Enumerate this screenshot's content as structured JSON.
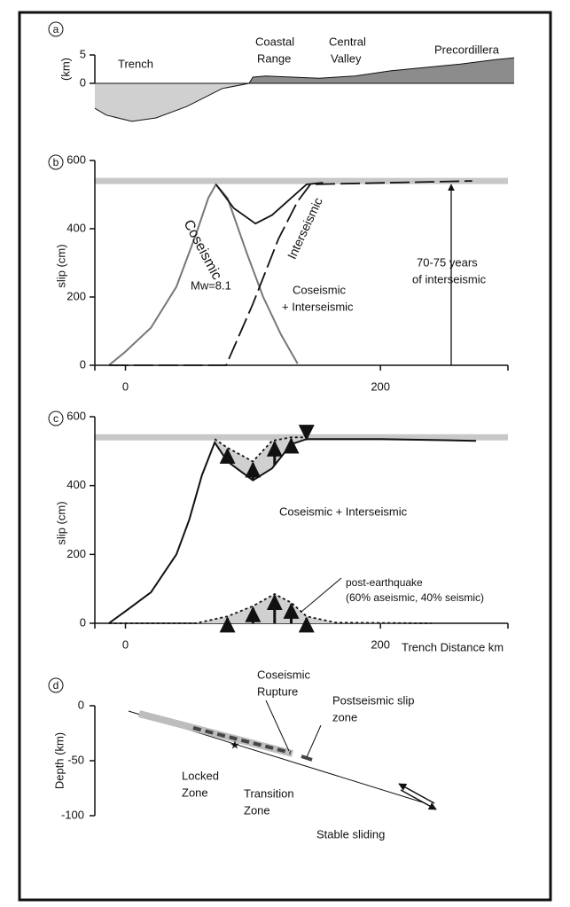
{
  "chart_data": [
    {
      "type": "profile",
      "label": "a",
      "ylabel": "(km)",
      "xlim": [
        -24,
        305
      ],
      "ylim": [
        -7,
        6
      ],
      "yticks": [
        0,
        5
      ],
      "x": [
        -24,
        -15,
        5,
        24,
        48,
        76,
        97,
        100,
        110,
        131,
        152,
        180,
        208,
        235,
        263,
        291,
        305
      ],
      "values": [
        -4.4,
        -5.6,
        -6.7,
        -6.1,
        -4.1,
        -0.9,
        0,
        1.1,
        1.3,
        1.1,
        0.9,
        1.3,
        2.2,
        2.8,
        3.4,
        4.2,
        4.5
      ],
      "annotations": [
        "Trench",
        "Coastal",
        "Range",
        "Central",
        "Valley",
        "Precordillera"
      ]
    },
    {
      "type": "line",
      "label": "b",
      "ylabel": "slip (cm)",
      "xlim": [
        -24,
        300
      ],
      "ylim": [
        0,
        600
      ],
      "xticks": [
        0,
        200
      ],
      "yticks": [
        0,
        200,
        400,
        600
      ],
      "reference_line": 540,
      "series": [
        {
          "name": "Coseismic",
          "color": "#777777",
          "x": [
            -13,
            0,
            20,
            40,
            55,
            65,
            71,
            80,
            95,
            108,
            122,
            135
          ],
          "values": [
            0,
            40,
            110,
            230,
            380,
            490,
            530,
            490,
            330,
            200,
            90,
            5
          ]
        },
        {
          "name": "Interseismic",
          "color": "#111111",
          "x": [
            -13,
            79,
            100,
            120,
            135,
            145,
            272
          ],
          "values": [
            0,
            0,
            180,
            370,
            480,
            530,
            540
          ]
        },
        {
          "color": "#111111",
          "x": [
            71,
            85,
            102,
            115,
            130,
            142,
            155
          ],
          "values": [
            530,
            460,
            415,
            440,
            490,
            530,
            535
          ]
        }
      ],
      "annotations": [
        "Mw=8.1",
        "Coseismic",
        "+ Interseismic",
        "70-75 years",
        "of  interseismic"
      ]
    },
    {
      "type": "line",
      "label": "c",
      "ylabel": "slip (cm)",
      "xlabel": "Trench Distance km",
      "xlim": [
        -24,
        300
      ],
      "ylim": [
        0,
        600
      ],
      "xticks": [
        0,
        200
      ],
      "yticks": [
        0,
        200,
        400,
        600
      ],
      "reference_line": 540,
      "series": [
        {
          "name": "Coseismic + Interseismic",
          "color": "#111111",
          "x": [
            -13,
            0,
            20,
            40,
            50,
            60,
            70,
            80,
            100,
            115,
            130,
            142,
            200,
            275
          ],
          "values": [
            0,
            35,
            90,
            200,
            300,
            430,
            525,
            470,
            415,
            450,
            520,
            535,
            535,
            530
          ]
        },
        {
          "color": "#111111",
          "x": [
            70,
            80,
            100,
            115,
            130,
            145
          ],
          "values": [
            535,
            510,
            470,
            530,
            540,
            540
          ]
        },
        {
          "name": "post-earthquake",
          "color": "#111111",
          "x": [
            -13,
            55,
            80,
            100,
            117,
            130,
            142,
            165,
            240
          ],
          "values": [
            0,
            0,
            20,
            50,
            85,
            60,
            20,
            2,
            0
          ]
        }
      ],
      "annotations": [
        "(60% aseismic, 40% seismic)"
      ]
    }
  ],
  "diagram": {
    "label": "d",
    "ylabel": "Depth (km)",
    "ylim": [
      -100,
      0
    ],
    "yticks": [
      0,
      -50,
      -100
    ],
    "labels": [
      "Coseismic",
      "Rupture",
      "Postseismic slip",
      "zone",
      "Locked",
      "Zone",
      "Transition",
      "Zone",
      "Stable sliding"
    ]
  }
}
